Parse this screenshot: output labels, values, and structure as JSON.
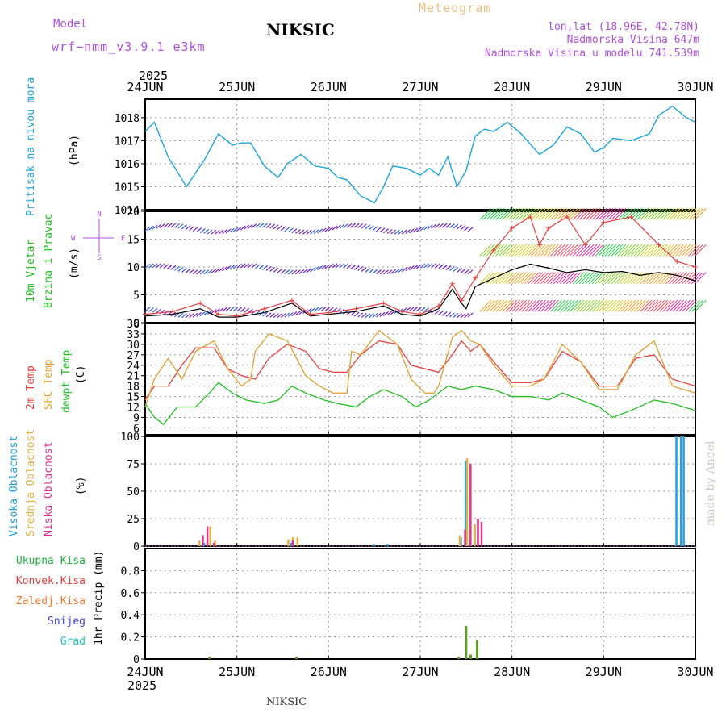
{
  "header": {
    "model_label": "Model",
    "model_name": "wrf−nmm_v3.9.1 e3km",
    "title": "NIKSIC",
    "meteogram_label": "Meteogram",
    "coords": "lon,lat (18.96E, 42.78N)",
    "elevation": "Nadmorska Visina 647m",
    "model_elevation": "Nadmorska Visina u modelu 741.539m",
    "year_top": "2025",
    "year_bottom": "2025",
    "footer_title": "NIKSIC",
    "watermark": "made by Angel"
  },
  "colors": {
    "pressure": "#1ba5e0",
    "temp2m": "#e84040",
    "sfc": "#e0a030",
    "dewpt": "#20c020",
    "high_cloud": "#20a0e0",
    "mid_cloud": "#e0b040",
    "low_cloud": "#e03090",
    "model_label": "#b050e0",
    "meteogram_label": "#e8c080",
    "precip": "#60a020"
  },
  "chart_data": [
    {
      "type": "line",
      "name": "pressure",
      "title": "Pritisak na nivou mora",
      "ylabel": "(hPa)",
      "ylim": [
        1014,
        1018.8
      ],
      "yticks": [
        "1014",
        "1015",
        "1016",
        "1017",
        "1018"
      ],
      "x_days": [
        "24JUN",
        "25JUN",
        "26JUN",
        "27JUN",
        "28JUN",
        "29JUN",
        "30JUN"
      ],
      "x": [
        0,
        0.1,
        0.25,
        0.45,
        0.65,
        0.8,
        0.95,
        1.05,
        1.15,
        1.3,
        1.45,
        1.55,
        1.7,
        1.85,
        2.0,
        2.1,
        2.2,
        2.35,
        2.5,
        2.6,
        2.7,
        2.85,
        3.0,
        3.1,
        3.2,
        3.3,
        3.4,
        3.5,
        3.6,
        3.7,
        3.8,
        3.95,
        4.1,
        4.3,
        4.45,
        4.6,
        4.75,
        4.9,
        5.0,
        5.1,
        5.3,
        5.5,
        5.6,
        5.75,
        5.9,
        6.0
      ],
      "values": [
        1017.4,
        1017.8,
        1016.3,
        1015.0,
        1016.2,
        1017.3,
        1016.8,
        1016.9,
        1016.9,
        1015.9,
        1015.4,
        1016.0,
        1016.4,
        1015.9,
        1015.8,
        1015.4,
        1015.3,
        1014.6,
        1014.3,
        1015.0,
        1015.9,
        1015.8,
        1015.5,
        1015.8,
        1015.5,
        1016.3,
        1015.0,
        1015.7,
        1017.2,
        1017.5,
        1017.4,
        1017.8,
        1017.3,
        1016.4,
        1016.8,
        1017.6,
        1017.3,
        1016.5,
        1016.7,
        1017.1,
        1017.0,
        1017.3,
        1018.1,
        1018.5,
        1018.0,
        1017.8
      ]
    },
    {
      "type": "line",
      "name": "wind",
      "title": "10m Vjetar Brzina i Pravac",
      "ylabel": "(m/s)",
      "ylim": [
        0,
        20
      ],
      "yticks": [
        "0",
        "5",
        "10",
        "15",
        "20"
      ],
      "compass": [
        "N",
        "S",
        "E",
        "W"
      ],
      "series": [
        {
          "name": "speed",
          "x": [
            0,
            0.3,
            0.6,
            0.8,
            1.0,
            1.3,
            1.6,
            1.8,
            2.0,
            2.3,
            2.6,
            2.8,
            3.0,
            3.2,
            3.35,
            3.45,
            3.5,
            3.6,
            3.8,
            4.0,
            4.2,
            4.4,
            4.6,
            4.8,
            5.0,
            5.2,
            5.4,
            5.6,
            5.8,
            6.0
          ],
          "values": [
            1.2,
            1.5,
            2.5,
            1.0,
            1.0,
            1.8,
            3.5,
            1.2,
            1.5,
            2.0,
            3.0,
            1.5,
            1.2,
            2.5,
            6.0,
            3.5,
            2.5,
            6.5,
            8.0,
            9.5,
            10.5,
            9.8,
            9.0,
            9.5,
            9.0,
            9.2,
            8.5,
            9.0,
            8.5,
            7.5
          ]
        },
        {
          "name": "gust",
          "x": [
            0,
            0.3,
            0.6,
            0.8,
            1.0,
            1.3,
            1.6,
            1.8,
            2.0,
            2.3,
            2.6,
            2.8,
            3.0,
            3.2,
            3.35,
            3.45,
            3.6,
            3.8,
            4.0,
            4.2,
            4.3,
            4.4,
            4.6,
            4.8,
            5.0,
            5.3,
            5.6,
            5.8,
            6.0
          ],
          "values": [
            1.5,
            2.0,
            3.5,
            1.5,
            1.2,
            2.5,
            4.0,
            1.5,
            1.8,
            2.5,
            3.5,
            2.0,
            1.5,
            3.0,
            7.0,
            4.0,
            8.0,
            13.0,
            17.0,
            19.0,
            14.0,
            17.0,
            19.0,
            14.0,
            18.0,
            19.0,
            14.0,
            11.0,
            10.0
          ]
        }
      ]
    },
    {
      "type": "line",
      "name": "temperature",
      "title": "2m Temp / SFC Temp / dewpt Temp",
      "ylabel": "(C)",
      "ylim": [
        4,
        36
      ],
      "yticks": [
        "6",
        "9",
        "12",
        "15",
        "18",
        "21",
        "24",
        "27",
        "30",
        "33",
        "36"
      ],
      "series": [
        {
          "name": "2m Temp",
          "x": [
            0,
            0.1,
            0.25,
            0.4,
            0.55,
            0.75,
            0.9,
            1.05,
            1.2,
            1.35,
            1.55,
            1.75,
            1.9,
            2.05,
            2.2,
            2.35,
            2.55,
            2.75,
            2.9,
            3.05,
            3.2,
            3.35,
            3.45,
            3.55,
            3.65,
            3.8,
            4.0,
            4.2,
            4.35,
            4.55,
            4.75,
            4.95,
            5.15,
            5.35,
            5.55,
            5.75,
            6.0
          ],
          "values": [
            14,
            18,
            18,
            24,
            29,
            29,
            23,
            21,
            20,
            26,
            30,
            28,
            23,
            22,
            22,
            27,
            31,
            30,
            24,
            23,
            22,
            27,
            31,
            28,
            30,
            25,
            19,
            19,
            20,
            28,
            25,
            18,
            18,
            26,
            27,
            20,
            18
          ]
        },
        {
          "name": "SFC Temp",
          "x": [
            0,
            0.1,
            0.25,
            0.4,
            0.55,
            0.75,
            0.9,
            1.05,
            1.15,
            1.2,
            1.35,
            1.55,
            1.75,
            1.9,
            2.05,
            2.2,
            2.25,
            2.35,
            2.55,
            2.75,
            2.9,
            3.05,
            3.15,
            3.2,
            3.35,
            3.45,
            3.55,
            3.65,
            3.8,
            4.0,
            4.2,
            4.35,
            4.55,
            4.75,
            4.95,
            5.15,
            5.35,
            5.55,
            5.75,
            6.0
          ],
          "values": [
            12,
            20,
            26,
            20,
            28,
            31,
            23,
            18,
            20,
            28,
            33,
            31,
            21,
            18,
            16,
            16,
            28,
            27,
            34,
            30,
            20,
            16,
            16,
            18,
            32,
            34,
            31,
            30,
            24,
            18,
            18,
            20,
            30,
            25,
            17,
            17,
            27,
            31,
            18,
            16
          ]
        },
        {
          "name": "dewpt Temp",
          "x": [
            0,
            0.1,
            0.2,
            0.35,
            0.55,
            0.7,
            0.8,
            0.95,
            1.1,
            1.3,
            1.45,
            1.6,
            1.75,
            1.95,
            2.1,
            2.3,
            2.45,
            2.6,
            2.8,
            2.95,
            3.1,
            3.3,
            3.45,
            3.6,
            3.8,
            4.0,
            4.2,
            4.4,
            4.55,
            4.75,
            4.95,
            5.1,
            5.3,
            5.55,
            5.75,
            6.0
          ],
          "values": [
            13,
            9,
            7,
            12,
            12,
            16,
            19,
            16,
            14,
            13,
            14,
            18,
            16,
            14,
            13,
            12,
            15,
            17,
            15,
            12,
            14,
            18,
            17,
            18,
            17,
            15,
            15,
            14,
            16,
            14,
            12,
            9,
            11,
            14,
            13,
            11
          ]
        }
      ]
    },
    {
      "type": "bar",
      "name": "clouds",
      "title": "Visoka Oblacnost / Srednja Oblacnost / Niska Oblacnost",
      "ylabel": "(%)",
      "ylim": [
        0,
        100
      ],
      "yticks": [
        "0",
        "25",
        "50",
        "75",
        "100"
      ],
      "series": [
        {
          "name": "Visoka Oblacnost",
          "x": [
            0.65,
            1.6,
            2.5,
            2.65,
            3.45,
            3.5,
            3.55,
            3.6,
            5.8,
            5.85,
            5.88
          ],
          "values": [
            3,
            3,
            2,
            2,
            8,
            78,
            5,
            20,
            100,
            100,
            100
          ]
        },
        {
          "name": "Srednja Oblacnost",
          "x": [
            0.58,
            0.7,
            0.75,
            1.55,
            1.6,
            1.65,
            3.42,
            3.5,
            3.58,
            3.62
          ],
          "values": [
            5,
            18,
            5,
            6,
            8,
            8,
            10,
            80,
            20,
            25
          ]
        },
        {
          "name": "Niska Oblacnost",
          "x": [
            0.6,
            0.65,
            0.72,
            1.58,
            3.46,
            3.52,
            3.6,
            3.64
          ],
          "values": [
            10,
            18,
            3,
            5,
            15,
            75,
            25,
            22
          ]
        }
      ]
    },
    {
      "type": "bar",
      "name": "precip",
      "title": "Ukupna Kisa / Konvek.Kisa / Zaledj.Kisa / Snijeg / Grad",
      "ylabel": "1hr Precip (mm)",
      "ylim": [
        0,
        1
      ],
      "yticks": [
        "0",
        "0.2",
        "0.4",
        "0.6",
        "0.8"
      ],
      "legend": [
        "Ukupna Kisa",
        "Konvek.Kisa",
        "Zaledj.Kisa",
        "Snijeg",
        "Grad"
      ],
      "series": [
        {
          "name": "Ukupna Kisa",
          "x": [
            0.7,
            1.65,
            3.42,
            3.5,
            3.55,
            3.62
          ],
          "values": [
            0.02,
            0.02,
            0.02,
            0.3,
            0.04,
            0.17
          ]
        }
      ]
    }
  ]
}
